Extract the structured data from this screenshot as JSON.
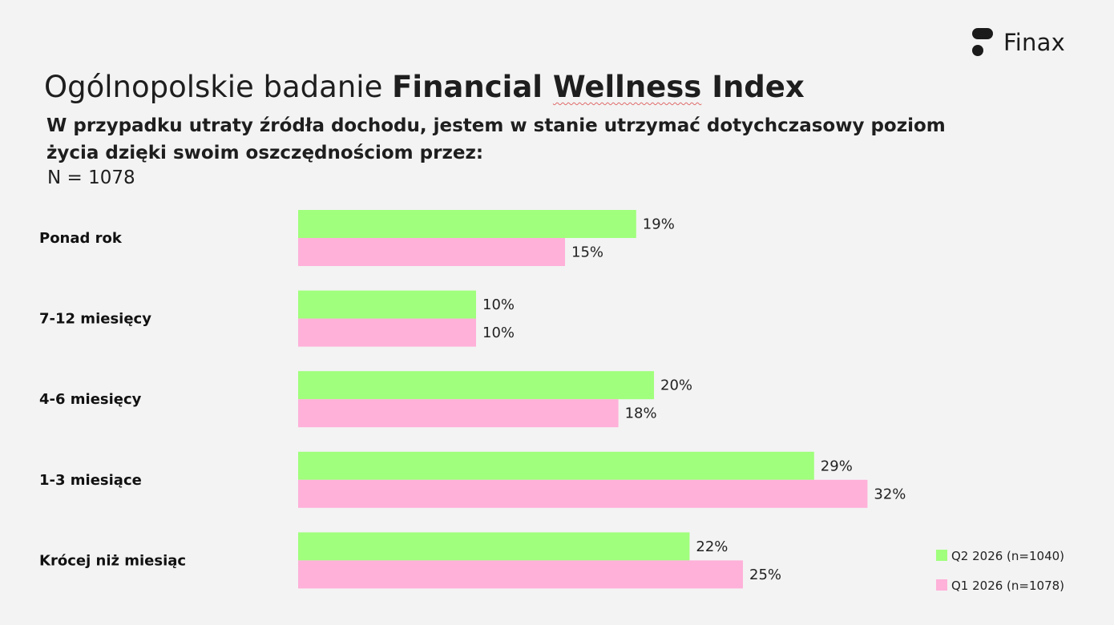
{
  "brand": {
    "name": "Finax",
    "mark_color": "#1b1b1b"
  },
  "header": {
    "title_regular": "Ogólnopolskie badanie ",
    "title_bold_1": "Financial ",
    "title_bold_2": "Wellness",
    "title_bold_3": " Index",
    "question": "W przypadku utraty źródła dochodu, jestem w stanie utrzymać dotychczasowy poziom życia dzięki swoim oszczędnościom przez:",
    "sample": "N = 1078"
  },
  "chart_data": {
    "type": "bar",
    "orientation": "horizontal",
    "categories": [
      "Ponad rok",
      "7-12 miesięcy",
      "4-6 miesięcy",
      "1-3 miesiące",
      "Krócej niż miesiąc"
    ],
    "series": [
      {
        "name": "Q2 2026 (n=1040)",
        "color": "#a0ff7c",
        "values": [
          19,
          10,
          20,
          29,
          22
        ],
        "labels": [
          "19%",
          "10%",
          "20%",
          "29%",
          "22%"
        ]
      },
      {
        "name": "Q1 2026 (n=1078)",
        "color": "#ffb1d9",
        "values": [
          15,
          10,
          18,
          32,
          25
        ],
        "labels": [
          "15%",
          "10%",
          "18%",
          "32%",
          "25%"
        ]
      }
    ],
    "xlim": [
      0,
      50
    ],
    "grid": false,
    "legend_position": "bottom-right"
  }
}
